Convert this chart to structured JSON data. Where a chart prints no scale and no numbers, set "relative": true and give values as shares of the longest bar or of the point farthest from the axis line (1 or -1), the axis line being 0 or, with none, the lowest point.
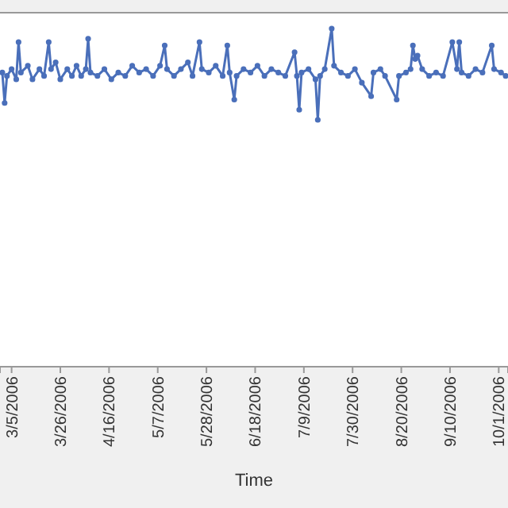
{
  "chart_data": {
    "type": "line",
    "xlabel": "Time",
    "relative": true,
    "marker": "circle",
    "xlim": [
      "2006-02-28",
      "2006-10-05"
    ],
    "xticks": [
      {
        "value": "2006-03-05",
        "label": "3/5/2006"
      },
      {
        "value": "2006-03-26",
        "label": "3/26/2006"
      },
      {
        "value": "2006-04-16",
        "label": "4/16/2006"
      },
      {
        "value": "2006-05-07",
        "label": "5/7/2006"
      },
      {
        "value": "2006-05-28",
        "label": "5/28/2006"
      },
      {
        "value": "2006-06-18",
        "label": "6/18/2006"
      },
      {
        "value": "2006-07-09",
        "label": "7/9/2006"
      },
      {
        "value": "2006-07-30",
        "label": "7/30/2006"
      },
      {
        "value": "2006-08-20",
        "label": "8/20/2006"
      },
      {
        "value": "2006-09-10",
        "label": "9/10/2006"
      },
      {
        "value": "2006-10-01",
        "label": "10/1/2006"
      }
    ],
    "x": [
      "2006-03-01",
      "2006-03-02",
      "2006-03-03",
      "2006-03-05",
      "2006-03-07",
      "2006-03-08",
      "2006-03-09",
      "2006-03-12",
      "2006-03-14",
      "2006-03-17",
      "2006-03-19",
      "2006-03-21",
      "2006-03-22",
      "2006-03-24",
      "2006-03-26",
      "2006-03-29",
      "2006-03-31",
      "2006-04-02",
      "2006-04-04",
      "2006-04-06",
      "2006-04-07",
      "2006-04-08",
      "2006-04-11",
      "2006-04-14",
      "2006-04-17",
      "2006-04-20",
      "2006-04-23",
      "2006-04-26",
      "2006-04-29",
      "2006-05-02",
      "2006-05-05",
      "2006-05-08",
      "2006-05-10",
      "2006-05-11",
      "2006-05-14",
      "2006-05-17",
      "2006-05-20",
      "2006-05-22",
      "2006-05-25",
      "2006-05-26",
      "2006-05-29",
      "2006-06-01",
      "2006-06-04",
      "2006-06-06",
      "2006-06-07",
      "2006-06-09",
      "2006-06-10",
      "2006-06-13",
      "2006-06-16",
      "2006-06-19",
      "2006-06-22",
      "2006-06-25",
      "2006-06-28",
      "2006-07-01",
      "2006-07-05",
      "2006-07-06",
      "2006-07-07",
      "2006-07-08",
      "2006-07-11",
      "2006-07-14",
      "2006-07-15",
      "2006-07-16",
      "2006-07-18",
      "2006-07-21",
      "2006-07-22",
      "2006-07-25",
      "2006-07-28",
      "2006-07-31",
      "2006-08-03",
      "2006-08-07",
      "2006-08-08",
      "2006-08-11",
      "2006-08-13",
      "2006-08-18",
      "2006-08-19",
      "2006-08-22",
      "2006-08-24",
      "2006-08-25",
      "2006-08-26",
      "2006-08-27",
      "2006-08-29",
      "2006-09-01",
      "2006-09-04",
      "2006-09-07",
      "2006-09-11",
      "2006-09-13",
      "2006-09-14",
      "2006-09-15",
      "2006-09-18",
      "2006-09-21",
      "2006-09-24",
      "2006-09-28",
      "2006-09-29",
      "2006-10-02",
      "2006-10-04"
    ],
    "series": [
      {
        "color": "#4a6fba",
        "values": [
          0.87,
          0.78,
          0.86,
          0.88,
          0.85,
          0.96,
          0.87,
          0.89,
          0.85,
          0.88,
          0.86,
          0.96,
          0.88,
          0.9,
          0.85,
          0.88,
          0.86,
          0.89,
          0.86,
          0.88,
          0.97,
          0.87,
          0.86,
          0.88,
          0.85,
          0.87,
          0.86,
          0.89,
          0.87,
          0.88,
          0.86,
          0.89,
          0.95,
          0.88,
          0.86,
          0.88,
          0.9,
          0.86,
          0.96,
          0.88,
          0.87,
          0.89,
          0.86,
          0.95,
          0.87,
          0.79,
          0.86,
          0.88,
          0.87,
          0.89,
          0.86,
          0.88,
          0.87,
          0.86,
          0.93,
          0.86,
          0.76,
          0.87,
          0.88,
          0.85,
          0.73,
          0.86,
          0.88,
          1,
          0.89,
          0.87,
          0.86,
          0.88,
          0.84,
          0.8,
          0.87,
          0.88,
          0.86,
          0.79,
          0.86,
          0.87,
          0.88,
          0.95,
          0.91,
          0.92,
          0.88,
          0.86,
          0.87,
          0.86,
          0.96,
          0.88,
          0.96,
          0.87,
          0.86,
          0.88,
          0.87,
          0.95,
          0.88,
          0.87,
          0.86
        ]
      }
    ]
  }
}
